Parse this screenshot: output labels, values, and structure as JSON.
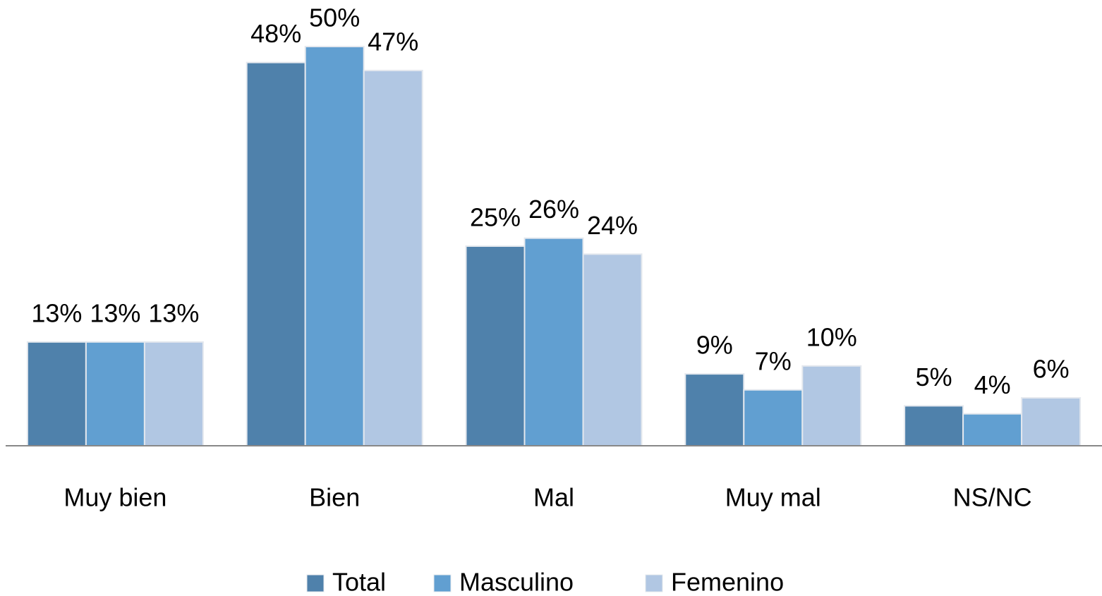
{
  "chart_data": {
    "type": "bar",
    "categories": [
      "Muy bien",
      "Bien",
      "Mal",
      "Muy mal",
      "NS/NC"
    ],
    "series": [
      {
        "name": "Total",
        "color": "#4f81ab",
        "values": [
          13,
          48,
          25,
          9,
          5
        ],
        "value_labels": [
          "13%",
          "48%",
          "25%",
          "9%",
          "5%"
        ]
      },
      {
        "name": "Masculino",
        "color": "#619fd1",
        "values": [
          13,
          50,
          26,
          7,
          4
        ],
        "value_labels": [
          "13%",
          "50%",
          "26%",
          "7%",
          "4%"
        ]
      },
      {
        "name": "Femenino",
        "color": "#b1c7e3",
        "values": [
          13,
          47,
          24,
          10,
          6
        ],
        "value_labels": [
          "13%",
          "47%",
          "24%",
          "10%",
          "6%"
        ]
      }
    ],
    "ylim": [
      0,
      50
    ],
    "legend": "bottom"
  }
}
